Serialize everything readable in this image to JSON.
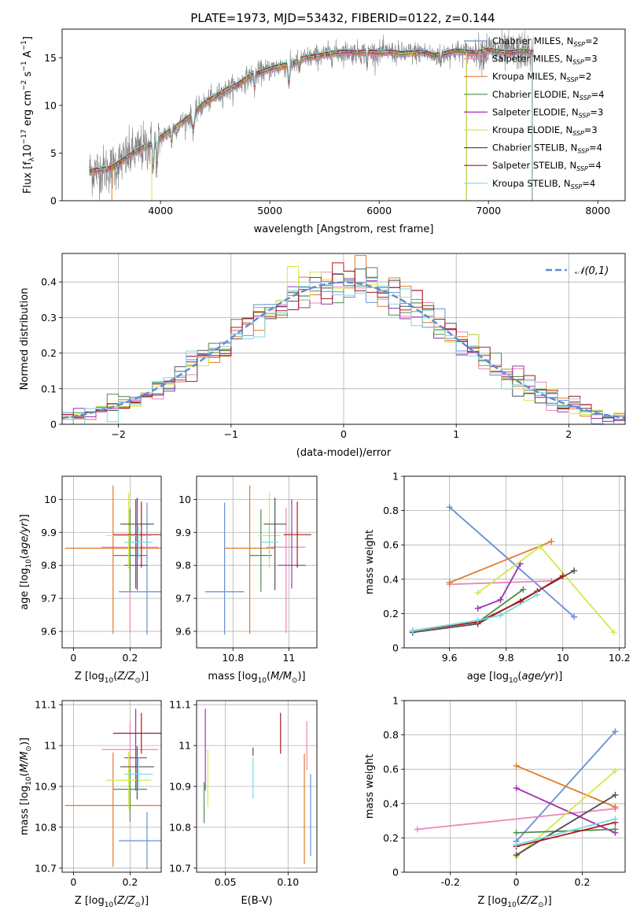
{
  "figure_title": "PLATE=1973, MJD=53432, FIBERID=0122, z=0.144",
  "chart_data": [
    {
      "id": "spectrum",
      "type": "line",
      "xlabel": "wavelength [Angstrom, rest frame]",
      "ylabel": "Flux [f_λ10^-17 erg cm^-2 s^-1 A^-1]",
      "xlim": [
        3100,
        8250
      ],
      "ylim": [
        0,
        18
      ],
      "xticks": [
        4000,
        5000,
        6000,
        7000,
        8000
      ],
      "yticks": [
        0,
        5,
        10,
        15
      ],
      "data_color": "#808080",
      "spectrum_anchors": [
        [
          3350,
          3.1
        ],
        [
          3450,
          3.2
        ],
        [
          3550,
          3.4
        ],
        [
          3650,
          4.2
        ],
        [
          3750,
          5.0
        ],
        [
          3850,
          5.6
        ],
        [
          3950,
          6.0
        ],
        [
          4000,
          6.6
        ],
        [
          4100,
          7.4
        ],
        [
          4200,
          8.2
        ],
        [
          4300,
          9.1
        ],
        [
          4400,
          10.2
        ],
        [
          4500,
          10.9
        ],
        [
          4600,
          11.6
        ],
        [
          4700,
          12.1
        ],
        [
          4800,
          12.9
        ],
        [
          4900,
          13.4
        ],
        [
          5000,
          13.8
        ],
        [
          5100,
          14.1
        ],
        [
          5200,
          14.3
        ],
        [
          5300,
          14.9
        ],
        [
          5400,
          15.1
        ],
        [
          5500,
          15.3
        ],
        [
          5600,
          15.5
        ],
        [
          5700,
          15.6
        ],
        [
          5800,
          15.5
        ],
        [
          5900,
          15.6
        ],
        [
          6000,
          15.5
        ],
        [
          6100,
          15.6
        ],
        [
          6200,
          15.4
        ],
        [
          6300,
          15.5
        ],
        [
          6400,
          15.6
        ],
        [
          6500,
          15.2
        ],
        [
          6600,
          15.4
        ],
        [
          6700,
          15.7
        ],
        [
          6800,
          15.6
        ],
        [
          6900,
          15.5
        ],
        [
          7000,
          15.8
        ],
        [
          7100,
          15.6
        ],
        [
          7200,
          15.5
        ],
        [
          7300,
          15.7
        ],
        [
          7400,
          15.5
        ]
      ],
      "legend_position": "upper right",
      "series": [
        {
          "name": "Chabrier MILES, N_SSP=2",
          "color": "#6a8ed6",
          "mask_wavelength": null
        },
        {
          "name": "Salpeter MILES, N_SSP=3",
          "color": "#e888bb",
          "mask_wavelength": null
        },
        {
          "name": "Kroupa MILES, N_SSP=2",
          "color": "#e07b27",
          "mask_wavelength": 6800
        },
        {
          "name": "Chabrier ELODIE, N_SSP=4",
          "color": "#4e8c4e",
          "mask_wavelength": 6800
        },
        {
          "name": "Salpeter ELODIE, N_SSP=3",
          "color": "#a030b0",
          "mask_wavelength": 6800
        },
        {
          "name": "Kroupa ELODIE, N_SSP=3",
          "color": "#d4e84a",
          "mask_wavelength": 6800
        },
        {
          "name": "Chabrier STELIB, N_SSP=4",
          "color": "#505050",
          "mask_wavelength": 7400
        },
        {
          "name": "Salpeter STELIB, N_SSP=4",
          "color": "#b01818",
          "mask_wavelength": 7400
        },
        {
          "name": "Kroupa STELIB, N_SSP=4",
          "color": "#7cd8e0",
          "mask_wavelength": 7400
        }
      ]
    },
    {
      "id": "residuals",
      "type": "histogram",
      "xlabel": "(data-model)/error",
      "ylabel": "Normed distribution",
      "xlim": [
        -2.5,
        2.5
      ],
      "ylim": [
        0,
        0.48
      ],
      "xticks": [
        -2,
        -1,
        0,
        1,
        2
      ],
      "yticks": [
        0.0,
        0.1,
        0.2,
        0.3,
        0.4
      ],
      "reference_curve": {
        "name": "𝒩(0,1)",
        "color": "#5b8bd9",
        "style": "dashed"
      },
      "bin_width": 0.1,
      "legend_position": "upper right",
      "grid": true
    },
    {
      "id": "age_vs_Z",
      "type": "errorbar",
      "xlabel": "Z [log10(Z/Z⊙)]",
      "ylabel": "age  [log10(age/yr)]",
      "xlim": [
        -0.04,
        0.31
      ],
      "ylim": [
        9.55,
        10.07
      ],
      "xticks": [
        0.0,
        0.2
      ],
      "yticks": [
        9.6,
        9.7,
        9.8,
        9.9,
        10.0
      ],
      "points": [
        {
          "color": "#6a8ed6",
          "x": 0.26,
          "xerr": 0.1,
          "y": 9.72,
          "yerr": [
            0.13,
            0.27
          ]
        },
        {
          "color": "#e888bb",
          "x": 0.2,
          "xerr": 0.1,
          "y": 9.855,
          "yerr": [
            0.26,
            0.12
          ]
        },
        {
          "color": "#e07b27",
          "x": 0.14,
          "xerr": 0.17,
          "y": 9.852,
          "yerr": [
            0.26,
            0.19
          ]
        },
        {
          "color": "#4e8c4e",
          "x": 0.2,
          "xerr": 0.06,
          "y": 9.83,
          "yerr": [
            0.11,
            0.14
          ]
        },
        {
          "color": "#a030b0",
          "x": 0.22,
          "xerr": 0.04,
          "y": 9.8,
          "yerr": [
            0.07,
            0.2
          ]
        },
        {
          "color": "#d4e84a",
          "x": 0.195,
          "xerr": 0.08,
          "y": 9.89,
          "yerr": [
            0.1,
            0.13
          ]
        },
        {
          "color": "#505050",
          "x": 0.225,
          "xerr": 0.06,
          "y": 9.925,
          "yerr": [
            0.2,
            0.08
          ]
        },
        {
          "color": "#b01818",
          "x": 0.24,
          "xerr": 0.1,
          "y": 9.893,
          "yerr": [
            0.1,
            0.1
          ]
        },
        {
          "color": "#7cd8e0",
          "x": 0.23,
          "xerr": 0.05,
          "y": 9.87,
          "yerr": [
            0.05,
            0.05
          ]
        }
      ]
    },
    {
      "id": "age_vs_mass",
      "type": "errorbar",
      "xlabel": "mass [log10(M/M⊙)]",
      "ylabel": "",
      "xlim": [
        10.67,
        11.1
      ],
      "ylim": [
        9.55,
        10.07
      ],
      "xticks": [
        10.8,
        11.0
      ],
      "yticks": [
        9.6,
        9.7,
        9.8,
        9.9,
        10.0
      ],
      "points": [
        {
          "color": "#6a8ed6",
          "x": 10.77,
          "xerr": 0.07,
          "y": 9.72,
          "yerr": [
            0.13,
            0.27
          ]
        },
        {
          "color": "#e888bb",
          "x": 10.99,
          "xerr": 0.07,
          "y": 9.855,
          "yerr": [
            0.26,
            0.12
          ]
        },
        {
          "color": "#e07b27",
          "x": 10.86,
          "xerr": 0.09,
          "y": 9.852,
          "yerr": [
            0.26,
            0.19
          ]
        },
        {
          "color": "#4e8c4e",
          "x": 10.9,
          "xerr": 0.04,
          "y": 9.83,
          "yerr": [
            0.11,
            0.14
          ]
        },
        {
          "color": "#a030b0",
          "x": 11.01,
          "xerr": 0.05,
          "y": 9.8,
          "yerr": [
            0.07,
            0.2
          ]
        },
        {
          "color": "#d4e84a",
          "x": 10.93,
          "xerr": 0.04,
          "y": 9.89,
          "yerr": [
            0.1,
            0.13
          ]
        },
        {
          "color": "#505050",
          "x": 10.95,
          "xerr": 0.04,
          "y": 9.925,
          "yerr": [
            0.2,
            0.08
          ]
        },
        {
          "color": "#b01818",
          "x": 11.03,
          "xerr": 0.05,
          "y": 9.893,
          "yerr": [
            0.1,
            0.1
          ]
        },
        {
          "color": "#7cd8e0",
          "x": 10.93,
          "xerr": 0.03,
          "y": 9.87,
          "yerr": [
            0.05,
            0.05
          ]
        }
      ]
    },
    {
      "id": "weight_vs_age",
      "type": "line",
      "xlabel": "age  [log10(age/yr)]",
      "ylabel": "mass weight",
      "xlim": [
        9.44,
        10.22
      ],
      "ylim": [
        0.0,
        1.0
      ],
      "xticks": [
        9.6,
        9.8,
        10.0,
        10.2
      ],
      "yticks": [
        0.0,
        0.2,
        0.4,
        0.6,
        0.8,
        1.0
      ],
      "series": [
        {
          "color": "#6a8ed6",
          "x": [
            9.6,
            10.04
          ],
          "y": [
            0.82,
            0.18
          ]
        },
        {
          "color": "#e888bb",
          "x": [
            9.6,
            9.96
          ],
          "y": [
            0.37,
            0.39
          ]
        },
        {
          "color": "#e07b27",
          "x": [
            9.6,
            9.96
          ],
          "y": [
            0.38,
            0.62
          ]
        },
        {
          "color": "#a030b0",
          "x": [
            9.7,
            9.78,
            9.85
          ],
          "y": [
            0.23,
            0.28,
            0.49
          ]
        },
        {
          "color": "#d4e84a",
          "x": [
            9.7,
            9.92,
            10.18
          ],
          "y": [
            0.32,
            0.59,
            0.09
          ]
        },
        {
          "color": "#4e8c4e",
          "x": [
            9.47,
            9.7,
            9.86
          ],
          "y": [
            0.1,
            0.15,
            0.34
          ]
        },
        {
          "color": "#505050",
          "x": [
            9.47,
            9.7,
            9.91,
            10.04
          ],
          "y": [
            0.09,
            0.14,
            0.33,
            0.45
          ]
        },
        {
          "color": "#b01818",
          "x": [
            9.47,
            9.7,
            9.85,
            10.0
          ],
          "y": [
            0.1,
            0.15,
            0.27,
            0.42
          ]
        },
        {
          "color": "#7cd8e0",
          "x": [
            9.47,
            9.7,
            9.78,
            9.91
          ],
          "y": [
            0.1,
            0.16,
            0.19,
            0.31
          ]
        }
      ]
    },
    {
      "id": "mass_vs_Z",
      "type": "errorbar",
      "xlabel": "Z [log10(Z/Z⊙)]",
      "ylabel": "mass [log10(M/M⊙)]",
      "xlim": [
        -0.04,
        0.31
      ],
      "ylim": [
        10.69,
        11.11
      ],
      "xticks": [
        0.0,
        0.2
      ],
      "yticks": [
        10.7,
        10.8,
        10.9,
        11.0,
        11.1
      ],
      "points": [
        {
          "color": "#6a8ed6",
          "x": 0.26,
          "xerr": 0.1,
          "y": 10.767,
          "yerr": [
            0.07,
            0.07
          ]
        },
        {
          "color": "#e888bb",
          "x": 0.2,
          "xerr": 0.1,
          "y": 10.99,
          "yerr": [
            0.07,
            0.07
          ]
        },
        {
          "color": "#e07b27",
          "x": 0.14,
          "xerr": 0.17,
          "y": 10.853,
          "yerr": [
            0.15,
            0.13
          ]
        },
        {
          "color": "#4e8c4e",
          "x": 0.2,
          "xerr": 0.06,
          "y": 10.893,
          "yerr": [
            0.08,
            0.05
          ]
        },
        {
          "color": "#a030b0",
          "x": 0.22,
          "xerr": 0.04,
          "y": 10.97,
          "yerr": [
            0.08,
            0.12
          ]
        },
        {
          "color": "#d4e84a",
          "x": 0.195,
          "xerr": 0.08,
          "y": 10.915,
          "yerr": [
            0.07,
            0.07
          ]
        },
        {
          "color": "#505050",
          "x": 0.225,
          "xerr": 0.06,
          "y": 10.948,
          "yerr": [
            0.08,
            0.05
          ]
        },
        {
          "color": "#b01818",
          "x": 0.24,
          "xerr": 0.1,
          "y": 11.03,
          "yerr": [
            0.05,
            0.05
          ]
        },
        {
          "color": "#7cd8e0",
          "x": 0.23,
          "xerr": 0.05,
          "y": 10.93,
          "yerr": [
            0.04,
            0.04
          ]
        }
      ]
    },
    {
      "id": "mass_vs_ebv",
      "type": "errorbar",
      "xlabel": "E(B-V)",
      "ylabel": "",
      "xlim": [
        0.027,
        0.123
      ],
      "ylim": [
        10.69,
        11.11
      ],
      "xticks": [
        0.05,
        0.1
      ],
      "yticks": [
        10.7,
        10.8,
        10.9,
        11.0,
        11.1
      ],
      "points": [
        {
          "color": "#6a8ed6",
          "x": 0.118,
          "y": 10.83,
          "yerr": [
            0.1,
            0.1
          ]
        },
        {
          "color": "#e888bb",
          "x": 0.115,
          "y": 11.0,
          "yerr": [
            0.06,
            0.06
          ]
        },
        {
          "color": "#e07b27",
          "x": 0.113,
          "y": 10.86,
          "yerr": [
            0.15,
            0.12
          ]
        },
        {
          "color": "#4e8c4e",
          "x": 0.033,
          "y": 10.86,
          "yerr": [
            0.05,
            0.05
          ]
        },
        {
          "color": "#a030b0",
          "x": 0.034,
          "y": 10.99,
          "yerr": [
            0.1,
            0.1
          ]
        },
        {
          "color": "#d4e84a",
          "x": 0.036,
          "y": 10.92,
          "yerr": [
            0.07,
            0.07
          ]
        },
        {
          "color": "#505050",
          "x": 0.072,
          "y": 10.985,
          "yerr": [
            0.01,
            0.01
          ]
        },
        {
          "color": "#b01818",
          "x": 0.094,
          "y": 11.03,
          "yerr": [
            0.05,
            0.05
          ]
        },
        {
          "color": "#7cd8e0",
          "x": 0.072,
          "y": 10.92,
          "yerr": [
            0.05,
            0.05
          ]
        }
      ]
    },
    {
      "id": "weight_vs_Z",
      "type": "line",
      "xlabel": "Z [log10(Z/Z⊙)]",
      "ylabel": "mass weight",
      "xlim": [
        -0.34,
        0.33
      ],
      "ylim": [
        0.0,
        1.0
      ],
      "xticks": [
        -0.2,
        0.0,
        0.2
      ],
      "yticks": [
        0.0,
        0.2,
        0.4,
        0.6,
        0.8,
        1.0
      ],
      "series": [
        {
          "color": "#6a8ed6",
          "x": [
            0.0,
            0.3
          ],
          "y": [
            0.18,
            0.82
          ]
        },
        {
          "color": "#e888bb",
          "x": [
            -0.3,
            0.3
          ],
          "y": [
            0.25,
            0.37
          ]
        },
        {
          "color": "#e07b27",
          "x": [
            0.0,
            0.3
          ],
          "y": [
            0.62,
            0.38
          ]
        },
        {
          "color": "#a030b0",
          "x": [
            0.0,
            0.3
          ],
          "y": [
            0.49,
            0.23
          ]
        },
        {
          "color": "#d4e84a",
          "x": [
            0.0,
            0.3
          ],
          "y": [
            0.09,
            0.59
          ]
        },
        {
          "color": "#4e8c4e",
          "x": [
            0.0,
            0.3
          ],
          "y": [
            0.23,
            0.25
          ]
        },
        {
          "color": "#505050",
          "x": [
            0.0,
            0.3
          ],
          "y": [
            0.1,
            0.45
          ]
        },
        {
          "color": "#b01818",
          "x": [
            0.0,
            0.3
          ],
          "y": [
            0.15,
            0.29
          ]
        },
        {
          "color": "#7cd8e0",
          "x": [
            0.0,
            0.3
          ],
          "y": [
            0.16,
            0.31
          ]
        }
      ]
    }
  ]
}
